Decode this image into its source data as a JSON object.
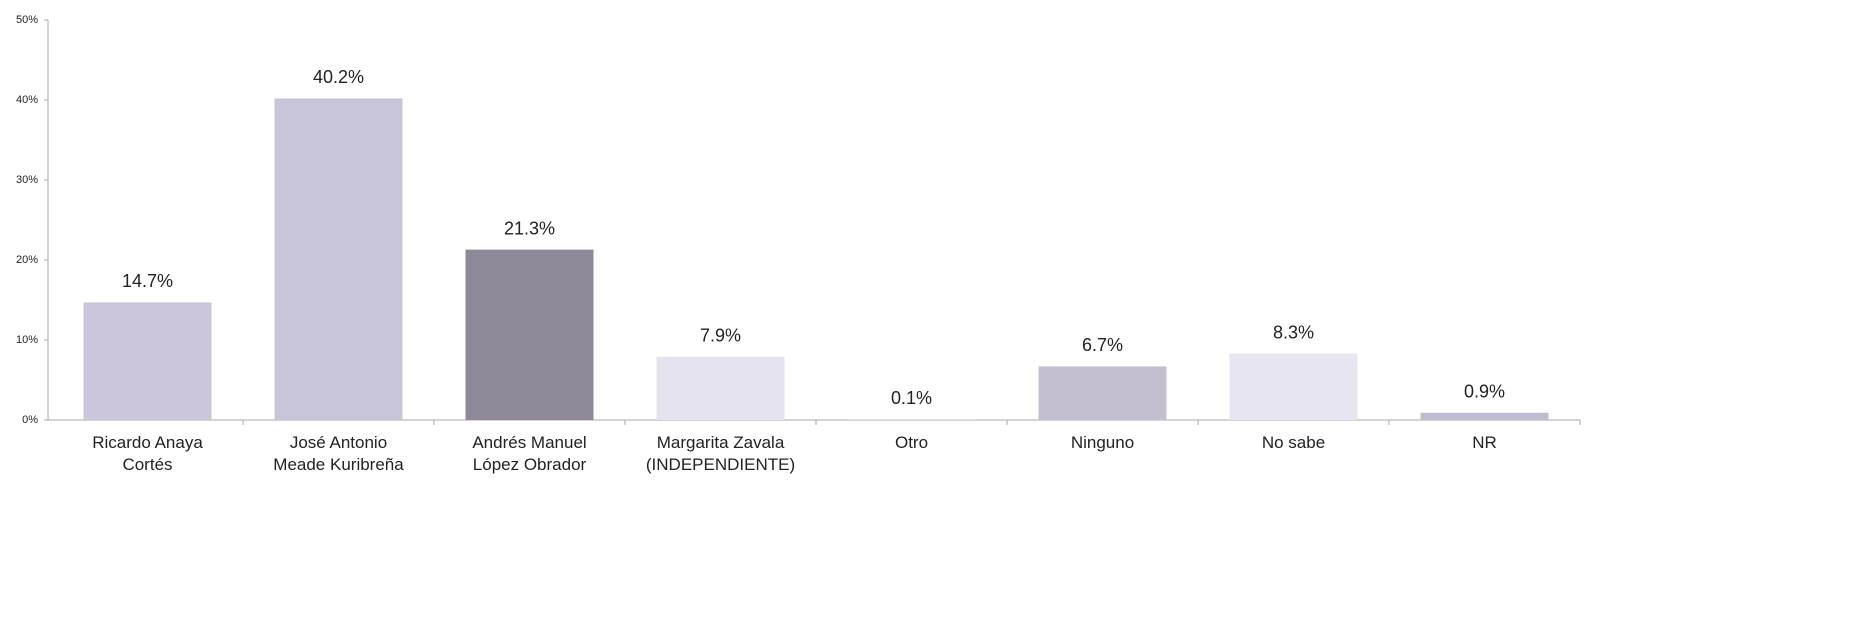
{
  "chart_data": {
    "type": "bar",
    "categories": [
      "Ricardo Anaya\nCortés",
      "José Antonio\nMeade Kuribreña",
      "Andrés Manuel\nLópez Obrador",
      "Margarita Zavala\n(INDEPENDIENTE)",
      "Otro",
      "Ninguno",
      "No sabe",
      "NR"
    ],
    "values": [
      14.7,
      40.2,
      21.3,
      7.9,
      0.1,
      6.7,
      8.3,
      0.9
    ],
    "value_labels": [
      "14.7%",
      "40.2%",
      "21.3%",
      "7.9%",
      "0.1%",
      "6.7%",
      "8.3%",
      "0.9%"
    ],
    "colors": [
      "#cbc6d9",
      "#c9c5d8",
      "#8e8899",
      "#e5e3ee",
      "#d9d7e2",
      "#c3bfd0",
      "#e7e5ef",
      "#c0bcd0"
    ],
    "ylim": [
      0,
      50
    ],
    "yticks": [
      {
        "value": 0,
        "label": "0%"
      },
      {
        "value": 10,
        "label": "10%"
      },
      {
        "value": 20,
        "label": "20%"
      },
      {
        "value": 30,
        "label": "30%"
      },
      {
        "value": 40,
        "label": "40%"
      },
      {
        "value": 50,
        "label": "50%"
      }
    ],
    "grid": false
  }
}
